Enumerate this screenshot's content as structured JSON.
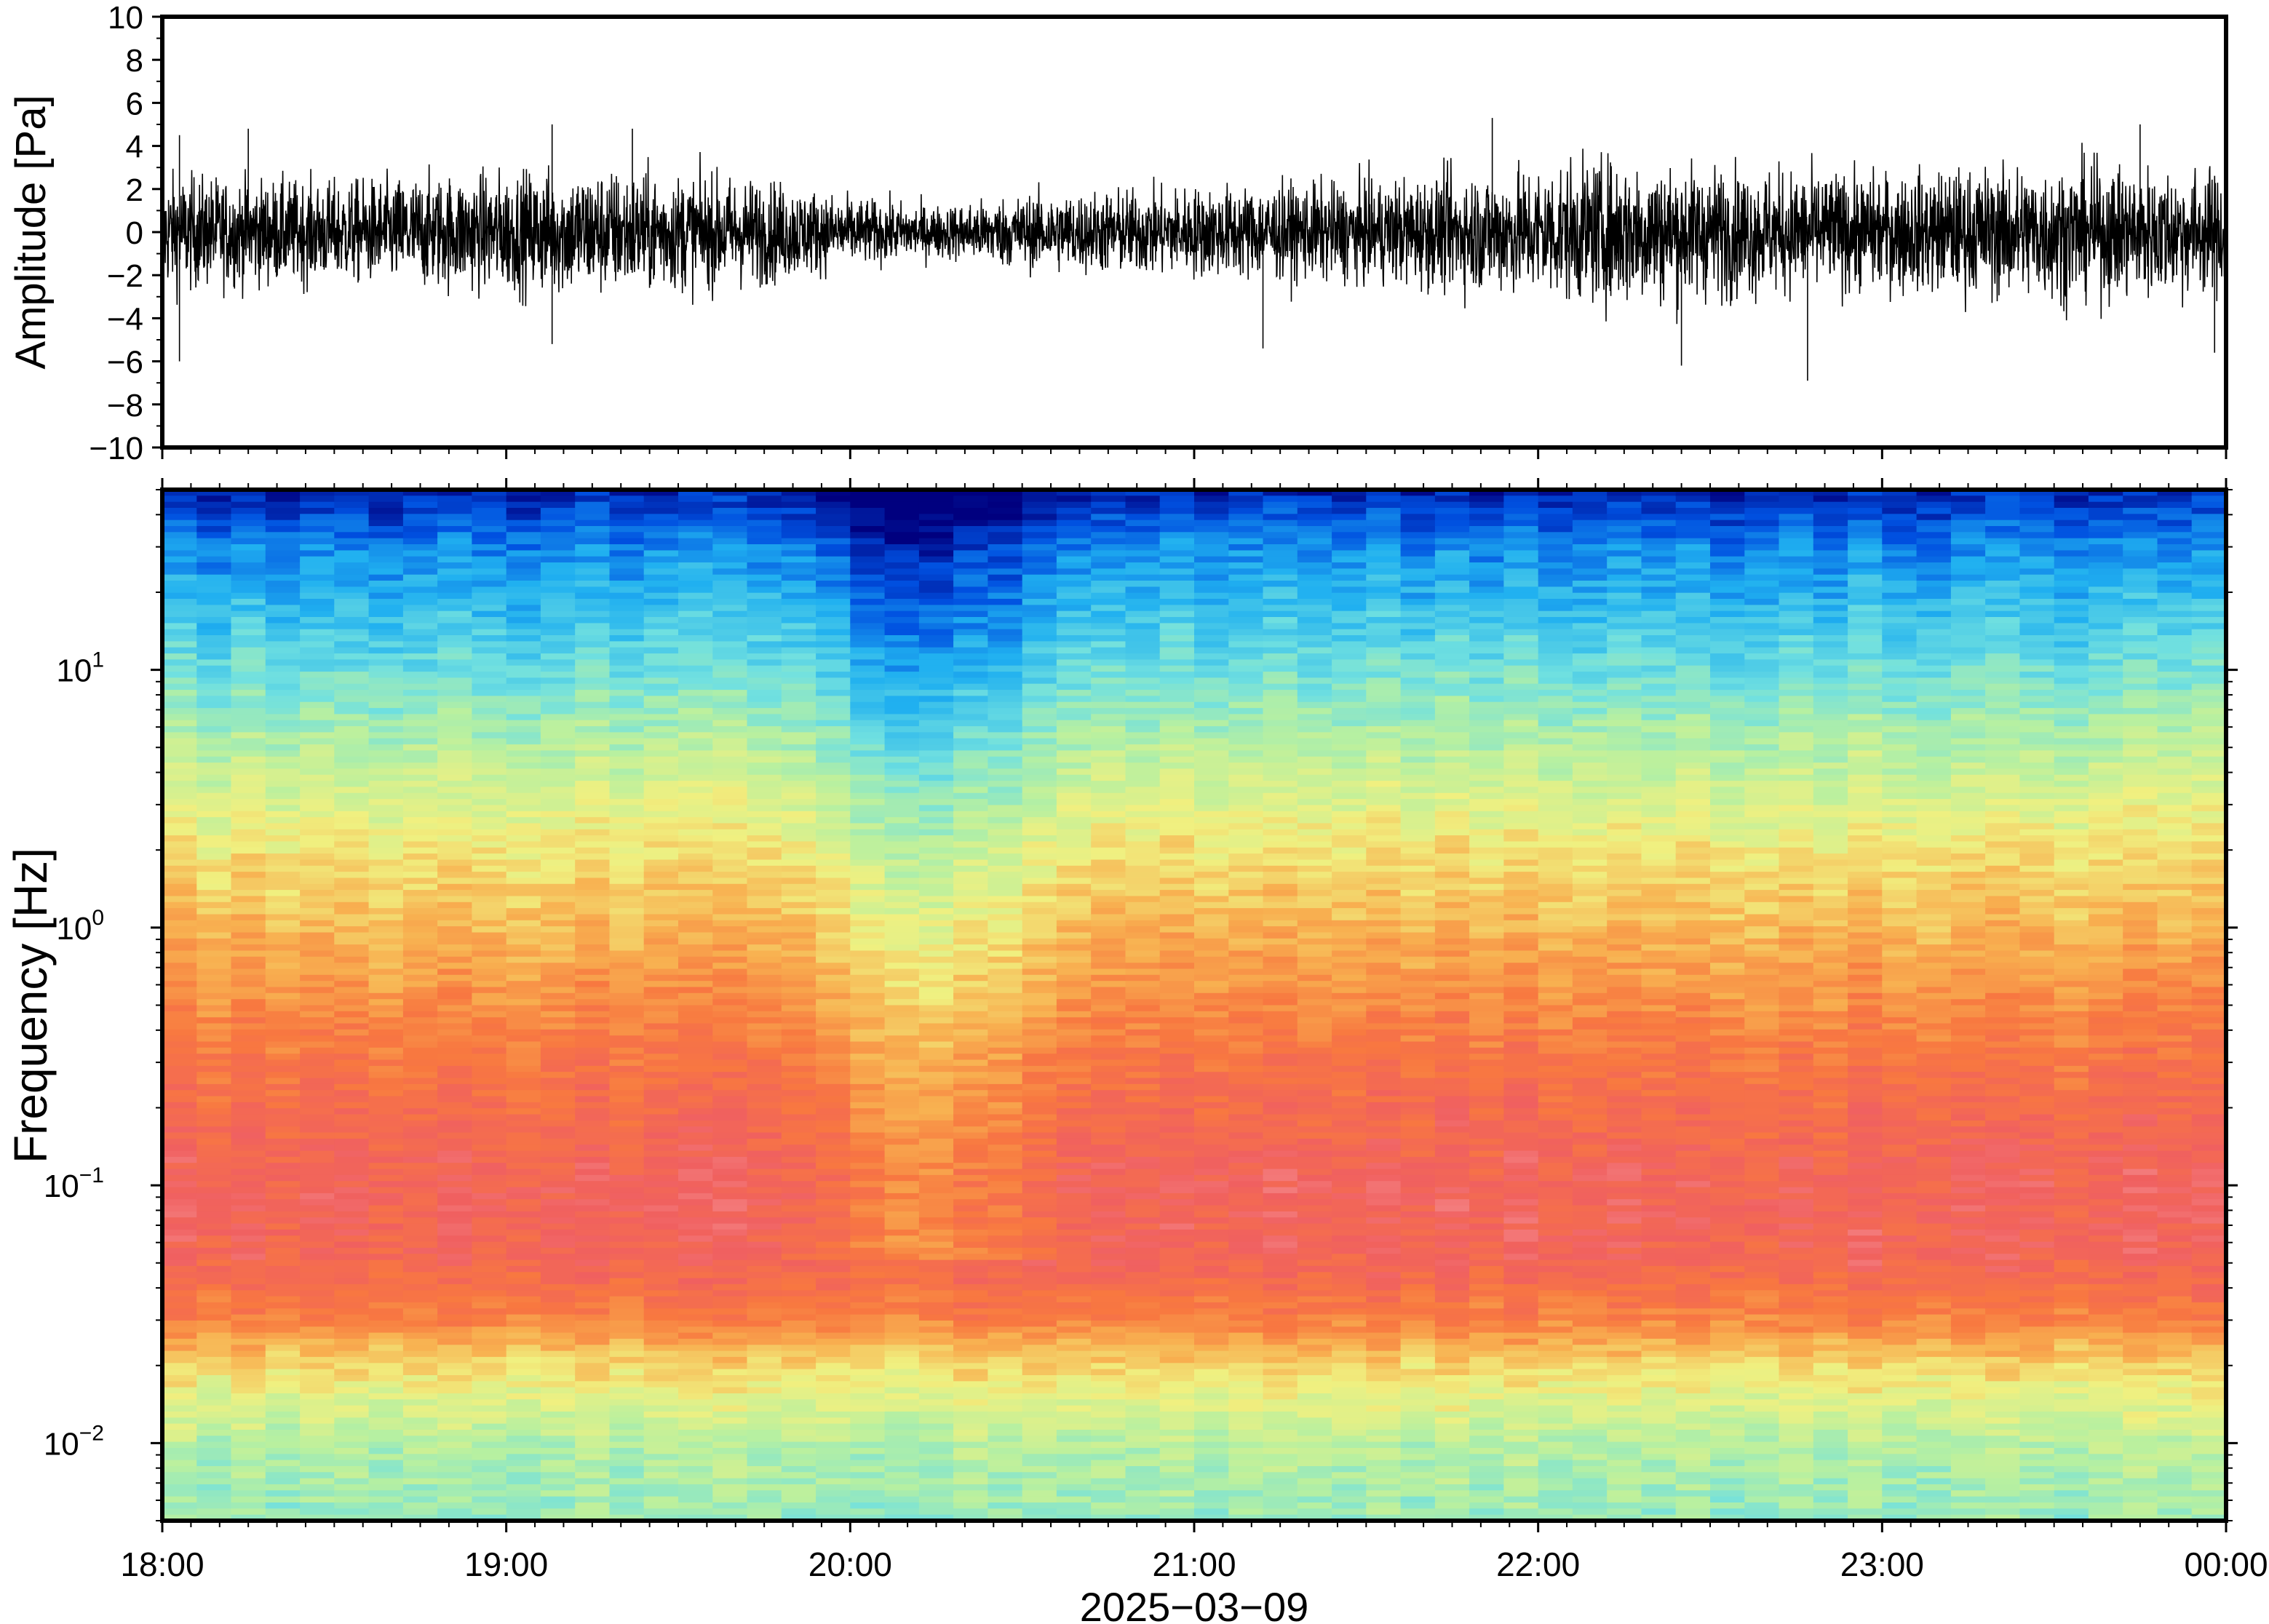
{
  "chart_data": [
    {
      "type": "line",
      "panel": "waveform",
      "ylabel": "Amplitude [Pa]",
      "ylim": [
        -10,
        10
      ],
      "yticks": [
        10,
        8,
        6,
        4,
        2,
        0,
        -2,
        -4,
        -6,
        -8,
        -10
      ],
      "ytick_labels": [
        "10",
        "8",
        "6",
        "4",
        "2",
        "0",
        "−2",
        "−4",
        "−6",
        "−8",
        "−10"
      ],
      "xlim": [
        "18:00",
        "00:00"
      ],
      "series": [
        {
          "color": "#000000",
          "x_hours": [
            18.0,
            18.25,
            18.5,
            18.75,
            19.0,
            19.25,
            19.5,
            19.75,
            20.0,
            20.25,
            20.5,
            20.75,
            21.0,
            21.25,
            21.5,
            21.75,
            22.0,
            22.25,
            22.5,
            22.75,
            23.0,
            23.25,
            23.5,
            23.75,
            24.0
          ],
          "envelope_pa": [
            2.2,
            2.0,
            1.9,
            2.1,
            2.3,
            2.4,
            2.2,
            2.0,
            1.3,
            1.0,
            1.4,
            1.6,
            1.7,
            1.8,
            1.9,
            2.2,
            2.5,
            2.8,
            2.5,
            2.3,
            2.2,
            2.4,
            2.6,
            2.5,
            2.3
          ],
          "peaks": [
            {
              "x": "18:03",
              "y": 4.5
            },
            {
              "x": "18:03",
              "y": -6.0
            },
            {
              "x": "18:15",
              "y": 4.8
            },
            {
              "x": "19:08",
              "y": 5.0
            },
            {
              "x": "19:08",
              "y": -5.2
            },
            {
              "x": "19:22",
              "y": 4.8
            },
            {
              "x": "21:12",
              "y": -5.4
            },
            {
              "x": "21:52",
              "y": 5.3
            },
            {
              "x": "22:25",
              "y": -6.2
            },
            {
              "x": "22:47",
              "y": -6.9
            },
            {
              "x": "23:45",
              "y": 5.0
            },
            {
              "x": "23:58",
              "y": -5.6
            }
          ]
        }
      ]
    },
    {
      "type": "heatmap",
      "panel": "spectrogram",
      "ylabel": "Frequency [Hz]",
      "yscale": "log",
      "ylim": [
        0.005,
        50
      ],
      "yticks": [
        {
          "base": "10",
          "exp": "1",
          "value": 10
        },
        {
          "base": "10",
          "exp": "0",
          "value": 1
        },
        {
          "base": "10",
          "exp": "−1",
          "value": 0.1
        },
        {
          "base": "10",
          "exp": "−2",
          "value": 0.01
        }
      ],
      "xlabel": "2025−03−09",
      "xticks": [
        "18:00",
        "19:00",
        "20:00",
        "21:00",
        "22:00",
        "23:00",
        "00:00"
      ],
      "colormap": [
        "#00007f",
        "#0050e0",
        "#20b0f0",
        "#70e0e0",
        "#b8f0a0",
        "#f0f080",
        "#f8b050",
        "#f87840",
        "#f06060",
        "#f8a0a0"
      ],
      "time_bins_per_hour": 10,
      "bands": [
        {
          "f_hz": 50,
          "level": 0.05
        },
        {
          "f_hz": 30,
          "level": 0.18
        },
        {
          "f_hz": 10,
          "level": 0.34
        },
        {
          "f_hz": 5,
          "level": 0.45
        },
        {
          "f_hz": 2,
          "level": 0.58
        },
        {
          "f_hz": 1,
          "level": 0.66
        },
        {
          "f_hz": 0.3,
          "level": 0.8
        },
        {
          "f_hz": 0.1,
          "level": 0.88
        },
        {
          "f_hz": 0.05,
          "level": 0.86
        },
        {
          "f_hz": 0.03,
          "level": 0.76
        },
        {
          "f_hz": 0.02,
          "level": 0.6
        },
        {
          "f_hz": 0.01,
          "level": 0.45
        },
        {
          "f_hz": 0.005,
          "level": 0.4
        }
      ],
      "quiet_window": {
        "start": "19:50",
        "end": "20:40",
        "level_drop": 0.12
      }
    }
  ]
}
